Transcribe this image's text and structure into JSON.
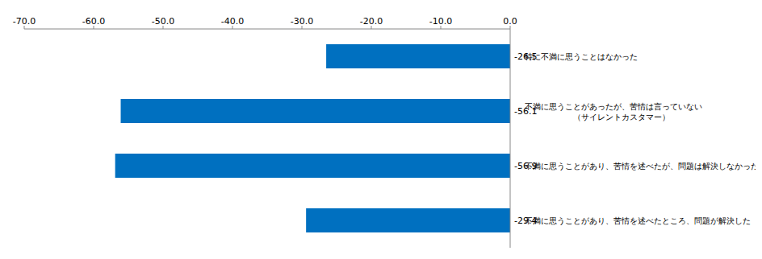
{
  "chart_data": {
    "type": "bar",
    "orientation": "horizontal",
    "categories": [
      "特に不満に思うことはなかった",
      "不満に思うことがあったが、苦情は言っていない\n（サイレントカスタマー）",
      "不満に思うことがあり、苦情を述べたが、問題は解決しなかった",
      "不満に思うことがあり、苦情を述べたところ、問題が解決した"
    ],
    "values": [
      -26.5,
      -56.1,
      -56.9,
      -29.4
    ],
    "color": "#0070C0",
    "xlim": [
      -70,
      0
    ],
    "xticks": [
      {
        "value": -70,
        "label": "-70.0"
      },
      {
        "value": -60,
        "label": "-60.0"
      },
      {
        "value": -50,
        "label": "-50.0"
      },
      {
        "value": -40,
        "label": "-40.0"
      },
      {
        "value": -30,
        "label": "-30.0"
      },
      {
        "value": -20,
        "label": "-20.0"
      },
      {
        "value": -10,
        "label": "-10.0"
      },
      {
        "value": 0,
        "label": "0.0"
      }
    ],
    "grid": false,
    "data_labels": true
  }
}
